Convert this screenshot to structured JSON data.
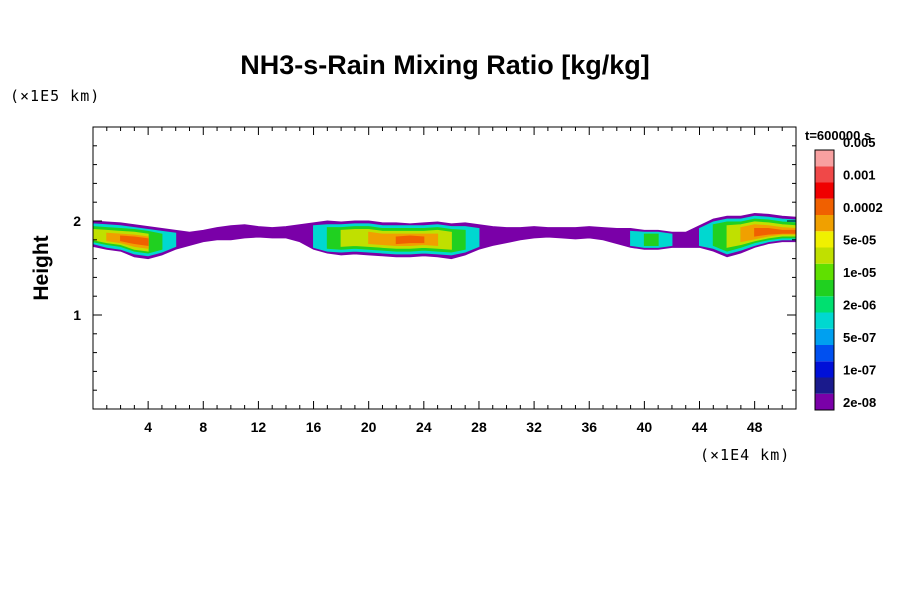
{
  "chart_data": {
    "type": "heatmap",
    "title": "NH3-s-Rain Mixing Ratio [kg/kg]",
    "ylabel": "Height",
    "x_unit": "(×1E4 km)",
    "y_unit": "(×1E5 km)",
    "time_label": "t=600000 s",
    "xlim": [
      0,
      51
    ],
    "ylim": [
      0,
      3
    ],
    "x_ticks": [
      4,
      8,
      12,
      16,
      20,
      24,
      28,
      32,
      36,
      40,
      44,
      48
    ],
    "x_tick_labels": [
      "4",
      "8",
      "12",
      "16",
      "20",
      "24",
      "28",
      "32",
      "36",
      "40",
      "44",
      "48"
    ],
    "y_ticks": [
      1,
      2
    ],
    "y_tick_labels": [
      "1",
      "2"
    ],
    "colorbar": {
      "colors": [
        "#7a00a8",
        "#1a1a8c",
        "#0010d8",
        "#0050f0",
        "#00a0f0",
        "#00d8d0",
        "#00e070",
        "#20d020",
        "#60e000",
        "#c0e000",
        "#f0f000",
        "#f0a000",
        "#f06000",
        "#f00000",
        "#f04848",
        "#f8a0a0"
      ],
      "labels": [
        "2e-08",
        "1e-07",
        "5e-07",
        "2e-06",
        "1e-05",
        "5e-05",
        "0.0002",
        "0.001",
        "0.005"
      ]
    },
    "layers": [
      {
        "level": 0,
        "color": "#7a00a8",
        "blobs": [
          [
            0,
            1.73,
            2.0
          ],
          [
            1,
            1.7,
            1.99
          ],
          [
            2,
            1.68,
            1.98
          ],
          [
            3,
            1.62,
            1.96
          ],
          [
            4,
            1.6,
            1.94
          ],
          [
            5,
            1.64,
            1.92
          ],
          [
            6,
            1.7,
            1.9
          ],
          [
            7,
            1.74,
            1.88
          ],
          [
            8,
            1.78,
            1.9
          ],
          [
            9,
            1.8,
            1.93
          ],
          [
            10,
            1.8,
            1.95
          ],
          [
            11,
            1.82,
            1.96
          ],
          [
            12,
            1.83,
            1.94
          ],
          [
            13,
            1.82,
            1.93
          ],
          [
            14,
            1.82,
            1.94
          ],
          [
            15,
            1.78,
            1.96
          ],
          [
            16,
            1.7,
            1.98
          ],
          [
            17,
            1.66,
            2.0
          ],
          [
            18,
            1.64,
            1.99
          ],
          [
            19,
            1.65,
            2.0
          ],
          [
            20,
            1.64,
            2.0
          ],
          [
            21,
            1.63,
            1.98
          ],
          [
            22,
            1.62,
            1.98
          ],
          [
            23,
            1.62,
            1.97
          ],
          [
            24,
            1.63,
            1.98
          ],
          [
            25,
            1.62,
            1.99
          ],
          [
            26,
            1.6,
            1.97
          ],
          [
            27,
            1.64,
            1.98
          ],
          [
            28,
            1.7,
            1.96
          ],
          [
            29,
            1.74,
            1.94
          ],
          [
            30,
            1.77,
            1.93
          ],
          [
            31,
            1.8,
            1.93
          ],
          [
            32,
            1.82,
            1.94
          ],
          [
            33,
            1.83,
            1.93
          ],
          [
            34,
            1.82,
            1.93
          ],
          [
            35,
            1.81,
            1.93
          ],
          [
            36,
            1.82,
            1.94
          ],
          [
            37,
            1.8,
            1.93
          ],
          [
            38,
            1.76,
            1.92
          ],
          [
            39,
            1.72,
            1.92
          ],
          [
            40,
            1.7,
            1.9
          ],
          [
            41,
            1.7,
            1.9
          ],
          [
            42,
            1.72,
            1.88
          ],
          [
            43,
            1.72,
            1.88
          ],
          [
            44,
            1.72,
            1.95
          ],
          [
            45,
            1.68,
            2.02
          ],
          [
            46,
            1.62,
            2.05
          ],
          [
            47,
            1.66,
            2.05
          ],
          [
            48,
            1.72,
            2.08
          ],
          [
            49,
            1.76,
            2.07
          ],
          [
            50,
            1.78,
            2.05
          ],
          [
            51,
            1.78,
            2.04
          ]
        ]
      },
      {
        "level": 1,
        "color": "#00d8d0",
        "blobs": [
          [
            0,
            1.76,
            1.97
          ],
          [
            1,
            1.72,
            1.96
          ],
          [
            2,
            1.7,
            1.95
          ],
          [
            3,
            1.65,
            1.93
          ],
          [
            4,
            1.63,
            1.91
          ],
          [
            5,
            1.67,
            1.89
          ],
          [
            6,
            1.73,
            1.87
          ],
          [
            16,
            1.72,
            1.95
          ],
          [
            17,
            1.68,
            1.96
          ],
          [
            18,
            1.67,
            1.96
          ],
          [
            19,
            1.68,
            1.97
          ],
          [
            20,
            1.67,
            1.97
          ],
          [
            21,
            1.66,
            1.95
          ],
          [
            22,
            1.65,
            1.95
          ],
          [
            23,
            1.65,
            1.95
          ],
          [
            24,
            1.66,
            1.95
          ],
          [
            25,
            1.65,
            1.96
          ],
          [
            26,
            1.64,
            1.94
          ],
          [
            27,
            1.67,
            1.94
          ],
          [
            28,
            1.73,
            1.92
          ],
          [
            39,
            1.74,
            1.89
          ],
          [
            40,
            1.72,
            1.88
          ],
          [
            41,
            1.72,
            1.88
          ],
          [
            42,
            1.74,
            1.86
          ],
          [
            44,
            1.74,
            1.92
          ],
          [
            45,
            1.71,
            1.99
          ],
          [
            46,
            1.65,
            2.02
          ],
          [
            47,
            1.69,
            2.02
          ],
          [
            48,
            1.74,
            2.05
          ],
          [
            49,
            1.78,
            2.04
          ],
          [
            50,
            1.8,
            2.02
          ],
          [
            51,
            1.8,
            2.01
          ]
        ]
      },
      {
        "level": 2,
        "color": "#20d020",
        "blobs": [
          [
            0,
            1.78,
            1.94
          ],
          [
            1,
            1.75,
            1.93
          ],
          [
            2,
            1.73,
            1.92
          ],
          [
            3,
            1.68,
            1.91
          ],
          [
            4,
            1.66,
            1.89
          ],
          [
            5,
            1.7,
            1.86
          ],
          [
            17,
            1.71,
            1.93
          ],
          [
            18,
            1.7,
            1.93
          ],
          [
            19,
            1.71,
            1.94
          ],
          [
            20,
            1.7,
            1.94
          ],
          [
            21,
            1.69,
            1.92
          ],
          [
            22,
            1.68,
            1.92
          ],
          [
            23,
            1.68,
            1.92
          ],
          [
            24,
            1.69,
            1.92
          ],
          [
            25,
            1.68,
            1.93
          ],
          [
            26,
            1.67,
            1.91
          ],
          [
            27,
            1.7,
            1.9
          ],
          [
            40,
            1.74,
            1.86
          ],
          [
            41,
            1.74,
            1.86
          ],
          [
            45,
            1.74,
            1.96
          ],
          [
            46,
            1.68,
            1.99
          ],
          [
            47,
            1.72,
            1.99
          ],
          [
            48,
            1.77,
            2.02
          ],
          [
            49,
            1.8,
            2.01
          ],
          [
            50,
            1.82,
            1.99
          ],
          [
            51,
            1.82,
            1.98
          ]
        ]
      },
      {
        "level": 3,
        "color": "#c0e000",
        "blobs": [
          [
            0,
            1.8,
            1.91
          ],
          [
            1,
            1.77,
            1.9
          ],
          [
            2,
            1.75,
            1.89
          ],
          [
            3,
            1.7,
            1.88
          ],
          [
            4,
            1.68,
            1.86
          ],
          [
            18,
            1.73,
            1.9
          ],
          [
            19,
            1.74,
            1.91
          ],
          [
            20,
            1.73,
            1.91
          ],
          [
            21,
            1.72,
            1.89
          ],
          [
            22,
            1.71,
            1.89
          ],
          [
            23,
            1.71,
            1.89
          ],
          [
            24,
            1.72,
            1.89
          ],
          [
            25,
            1.71,
            1.9
          ],
          [
            26,
            1.7,
            1.88
          ],
          [
            46,
            1.72,
            1.95
          ],
          [
            47,
            1.75,
            1.96
          ],
          [
            48,
            1.79,
            1.99
          ],
          [
            49,
            1.82,
            1.98
          ],
          [
            50,
            1.84,
            1.96
          ],
          [
            51,
            1.84,
            1.95
          ]
        ]
      },
      {
        "level": 4,
        "color": "#f0a000",
        "blobs": [
          [
            1,
            1.79,
            1.87
          ],
          [
            2,
            1.77,
            1.86
          ],
          [
            3,
            1.73,
            1.85
          ],
          [
            4,
            1.71,
            1.83
          ],
          [
            20,
            1.76,
            1.88
          ],
          [
            21,
            1.75,
            1.86
          ],
          [
            22,
            1.74,
            1.86
          ],
          [
            23,
            1.74,
            1.86
          ],
          [
            24,
            1.75,
            1.86
          ],
          [
            25,
            1.74,
            1.86
          ],
          [
            47,
            1.78,
            1.93
          ],
          [
            48,
            1.81,
            1.96
          ],
          [
            49,
            1.84,
            1.95
          ],
          [
            50,
            1.86,
            1.93
          ],
          [
            51,
            1.86,
            1.92
          ]
        ]
      },
      {
        "level": 5,
        "color": "#f06000",
        "blobs": [
          [
            2,
            1.79,
            1.84
          ],
          [
            3,
            1.76,
            1.83
          ],
          [
            4,
            1.74,
            1.81
          ],
          [
            22,
            1.76,
            1.83
          ],
          [
            23,
            1.77,
            1.84
          ],
          [
            24,
            1.77,
            1.83
          ],
          [
            48,
            1.84,
            1.92
          ],
          [
            49,
            1.86,
            1.92
          ],
          [
            50,
            1.87,
            1.9
          ],
          [
            51,
            1.87,
            1.9
          ]
        ]
      }
    ]
  }
}
